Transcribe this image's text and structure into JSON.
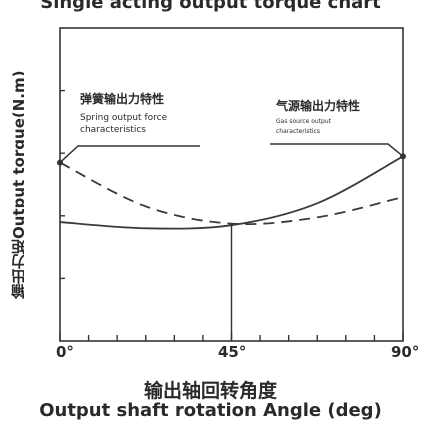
{
  "chart_data": {
    "type": "line",
    "title": "Single acting output torque chart",
    "xlabel_cn": "输出轴回转角度",
    "xlabel_en": "Output shaft rotation Angle (deg)",
    "ylabel": "输出力矩Output torque(N.m)",
    "xlim": [
      0,
      90
    ],
    "ylim": [
      0,
      1
    ],
    "x_ticks": [
      "0°",
      "45°",
      "90°"
    ],
    "grid": false,
    "series": [
      {
        "name_cn": "弹簧输出力特性",
        "name_en_line1": "Spring output force",
        "name_en_line2": "characteristics",
        "style": "dashed",
        "x": [
          0,
          22.5,
          45,
          67.5,
          90
        ],
        "y": [
          0.57,
          0.43,
          0.375,
          0.395,
          0.46
        ]
      },
      {
        "name_cn": "气源输出力特性",
        "name_en_line1": "Gas source output",
        "name_en_line2": "characteristics",
        "style": "solid",
        "x": [
          0,
          22.5,
          45,
          67.5,
          90
        ],
        "y": [
          0.38,
          0.36,
          0.37,
          0.44,
          0.59
        ]
      }
    ],
    "annotations": [
      {
        "type": "vertical-line",
        "x": 45
      }
    ]
  }
}
